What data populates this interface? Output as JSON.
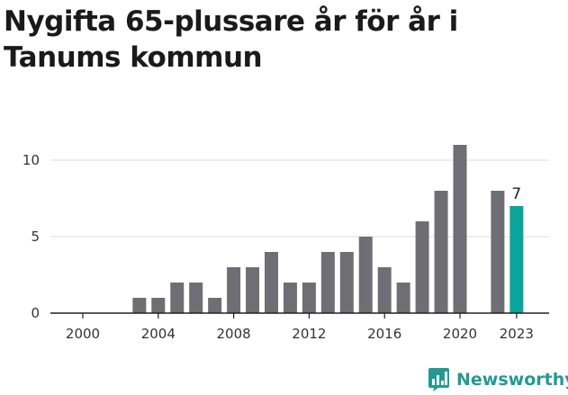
{
  "title": "Nygifta 65-plussare år för år i Tanums kommun",
  "brand": {
    "name": "Newsworthy",
    "color": "#229a93"
  },
  "chart_data": {
    "type": "bar",
    "title": "Nygifta 65-plussare år för år i Tanums kommun",
    "xlabel": "",
    "ylabel": "",
    "categories": [
      2000,
      2001,
      2002,
      2003,
      2004,
      2005,
      2006,
      2007,
      2008,
      2009,
      2010,
      2011,
      2012,
      2013,
      2014,
      2015,
      2016,
      2017,
      2018,
      2019,
      2020,
      2021,
      2022,
      2023
    ],
    "values": [
      0,
      0,
      0,
      1,
      1,
      2,
      2,
      1,
      3,
      3,
      4,
      2,
      2,
      4,
      4,
      5,
      3,
      2,
      6,
      8,
      11,
      0,
      8,
      7
    ],
    "x_ticks": [
      "2000",
      "2004",
      "2008",
      "2012",
      "2016",
      "2020",
      "2023"
    ],
    "y_ticks": [
      "0",
      "5",
      "10"
    ],
    "ylim": [
      0,
      11
    ],
    "grid": true,
    "bar_color": "#6f6e75",
    "highlight": {
      "category": 2023,
      "color": "#0ca39a",
      "label": "7"
    },
    "legend": "none"
  }
}
